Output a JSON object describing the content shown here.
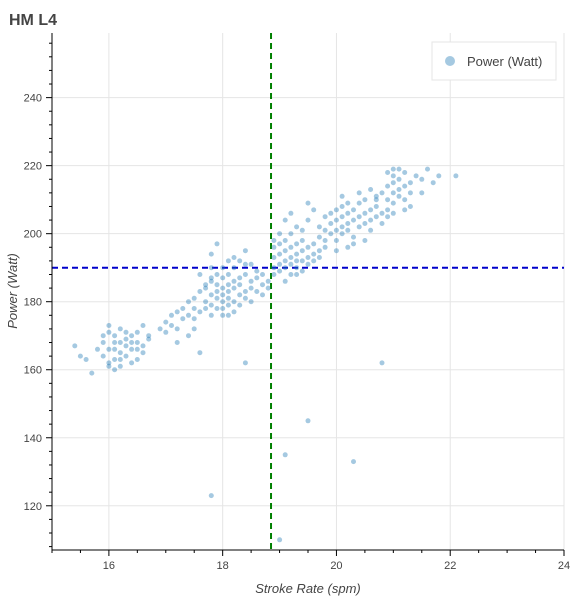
{
  "chart_data": {
    "type": "scatter",
    "title": "HM L4",
    "xlabel": "Stroke Rate (spm)",
    "ylabel": "Power (Watt)",
    "xlim": [
      15.0,
      24.0
    ],
    "ylim": [
      107,
      259
    ],
    "x_ticks": [
      16,
      18,
      20,
      22,
      24
    ],
    "y_ticks": [
      120,
      140,
      160,
      180,
      200,
      220,
      240
    ],
    "grid": true,
    "legend_position": "top-right",
    "reference_lines": {
      "vertical_x": 18.85,
      "horizontal_y": 190,
      "vertical_color": "#008000",
      "horizontal_color": "#0000cc"
    },
    "series": [
      {
        "name": "Power (Watt)",
        "color": "#1f77b4",
        "opacity": 0.4,
        "points": [
          [
            15.4,
            167
          ],
          [
            15.5,
            164
          ],
          [
            15.6,
            163
          ],
          [
            15.7,
            159
          ],
          [
            15.8,
            166
          ],
          [
            15.9,
            170
          ],
          [
            15.9,
            164
          ],
          [
            16.0,
            171
          ],
          [
            16.0,
            166
          ],
          [
            16.1,
            168
          ],
          [
            16.0,
            162
          ],
          [
            16.1,
            163
          ],
          [
            16.1,
            170
          ],
          [
            16.2,
            165
          ],
          [
            16.2,
            168
          ],
          [
            16.2,
            172
          ],
          [
            16.3,
            167
          ],
          [
            16.3,
            164
          ],
          [
            16.3,
            169
          ],
          [
            16.4,
            170
          ],
          [
            16.4,
            166
          ],
          [
            16.4,
            162
          ],
          [
            16.5,
            168
          ],
          [
            16.5,
            163
          ],
          [
            16.5,
            171
          ],
          [
            16.6,
            167
          ],
          [
            16.6,
            165
          ],
          [
            16.6,
            173
          ],
          [
            16.7,
            169
          ],
          [
            16.7,
            170
          ],
          [
            16.0,
            161
          ],
          [
            16.1,
            160
          ],
          [
            16.2,
            161
          ],
          [
            15.9,
            168
          ],
          [
            16.0,
            173
          ],
          [
            16.3,
            171
          ],
          [
            16.4,
            168
          ],
          [
            16.5,
            166
          ],
          [
            16.2,
            163
          ],
          [
            16.1,
            166
          ],
          [
            16.9,
            172
          ],
          [
            17.0,
            174
          ],
          [
            17.0,
            171
          ],
          [
            17.1,
            173
          ],
          [
            17.1,
            176
          ],
          [
            17.2,
            172
          ],
          [
            17.2,
            177
          ],
          [
            17.3,
            175
          ],
          [
            17.3,
            178
          ],
          [
            17.4,
            176
          ],
          [
            17.4,
            180
          ],
          [
            17.5,
            178
          ],
          [
            17.5,
            181
          ],
          [
            17.5,
            175
          ],
          [
            17.6,
            177
          ],
          [
            17.6,
            183
          ],
          [
            17.7,
            180
          ],
          [
            17.7,
            184
          ],
          [
            17.7,
            178
          ],
          [
            17.8,
            182
          ],
          [
            17.8,
            186
          ],
          [
            17.8,
            179
          ],
          [
            17.8,
            176
          ],
          [
            17.9,
            181
          ],
          [
            17.9,
            185
          ],
          [
            17.9,
            188
          ],
          [
            17.9,
            183
          ],
          [
            18.0,
            180
          ],
          [
            18.0,
            184
          ],
          [
            18.0,
            187
          ],
          [
            18.0,
            178
          ],
          [
            18.0,
            182
          ],
          [
            18.1,
            185
          ],
          [
            18.1,
            181
          ],
          [
            18.1,
            188
          ],
          [
            18.1,
            176
          ],
          [
            18.1,
            183
          ],
          [
            18.2,
            186
          ],
          [
            18.2,
            180
          ],
          [
            18.2,
            190
          ],
          [
            18.2,
            184
          ],
          [
            18.3,
            182
          ],
          [
            18.3,
            187
          ],
          [
            18.3,
            179
          ],
          [
            18.3,
            185
          ],
          [
            18.4,
            183
          ],
          [
            18.4,
            188
          ],
          [
            18.4,
            181
          ],
          [
            18.4,
            191
          ],
          [
            18.5,
            186
          ],
          [
            18.5,
            184
          ],
          [
            18.5,
            180
          ],
          [
            18.6,
            187
          ],
          [
            18.6,
            183
          ],
          [
            18.6,
            189
          ],
          [
            18.7,
            185
          ],
          [
            18.7,
            182
          ],
          [
            18.7,
            188
          ],
          [
            18.8,
            186
          ],
          [
            18.8,
            184
          ],
          [
            17.7,
            185
          ],
          [
            17.8,
            187
          ],
          [
            17.9,
            178
          ],
          [
            18.0,
            176
          ],
          [
            18.1,
            179
          ],
          [
            18.2,
            177
          ],
          [
            18.0,
            190
          ],
          [
            18.1,
            192
          ],
          [
            17.8,
            190
          ],
          [
            18.3,
            192
          ],
          [
            17.6,
            188
          ],
          [
            17.5,
            172
          ],
          [
            17.4,
            170
          ],
          [
            17.2,
            168
          ],
          [
            17.6,
            165
          ],
          [
            17.9,
            197
          ],
          [
            17.8,
            194
          ],
          [
            18.2,
            193
          ],
          [
            18.4,
            195
          ],
          [
            18.5,
            191
          ],
          [
            18.9,
            190
          ],
          [
            18.9,
            193
          ],
          [
            18.9,
            196
          ],
          [
            18.9,
            188
          ],
          [
            19.0,
            191
          ],
          [
            19.0,
            194
          ],
          [
            19.0,
            197
          ],
          [
            19.0,
            189
          ],
          [
            19.1,
            192
          ],
          [
            19.1,
            195
          ],
          [
            19.1,
            190
          ],
          [
            19.1,
            198
          ],
          [
            19.2,
            193
          ],
          [
            19.2,
            196
          ],
          [
            19.2,
            191
          ],
          [
            19.2,
            188
          ],
          [
            19.3,
            194
          ],
          [
            19.3,
            192
          ],
          [
            19.3,
            197
          ],
          [
            19.3,
            190
          ],
          [
            19.4,
            195
          ],
          [
            19.4,
            192
          ],
          [
            19.4,
            198
          ],
          [
            19.5,
            193
          ],
          [
            19.5,
            196
          ],
          [
            19.5,
            191
          ],
          [
            19.6,
            194
          ],
          [
            19.6,
            197
          ],
          [
            19.6,
            192
          ],
          [
            19.7,
            195
          ],
          [
            19.7,
            193
          ],
          [
            19.7,
            199
          ],
          [
            19.8,
            196
          ],
          [
            19.8,
            198
          ],
          [
            19.8,
            201
          ],
          [
            18.9,
            198
          ],
          [
            19.0,
            200
          ],
          [
            19.1,
            186
          ],
          [
            19.2,
            200
          ],
          [
            19.4,
            189
          ],
          [
            19.1,
            204
          ],
          [
            19.2,
            206
          ],
          [
            19.3,
            202
          ],
          [
            19.4,
            201
          ],
          [
            19.5,
            204
          ],
          [
            19.6,
            207
          ],
          [
            19.5,
            209
          ],
          [
            19.7,
            202
          ],
          [
            19.8,
            205
          ],
          [
            19.3,
            188
          ],
          [
            19.9,
            200
          ],
          [
            19.9,
            203
          ],
          [
            19.9,
            206
          ],
          [
            20.0,
            201
          ],
          [
            20.0,
            204
          ],
          [
            20.0,
            198
          ],
          [
            20.0,
            207
          ],
          [
            20.1,
            202
          ],
          [
            20.1,
            205
          ],
          [
            20.1,
            200
          ],
          [
            20.1,
            208
          ],
          [
            20.2,
            203
          ],
          [
            20.2,
            206
          ],
          [
            20.2,
            201
          ],
          [
            20.3,
            204
          ],
          [
            20.3,
            199
          ],
          [
            20.3,
            207
          ],
          [
            20.4,
            202
          ],
          [
            20.4,
            205
          ],
          [
            20.4,
            209
          ],
          [
            20.5,
            203
          ],
          [
            20.5,
            206
          ],
          [
            20.5,
            210
          ],
          [
            20.6,
            204
          ],
          [
            20.6,
            207
          ],
          [
            20.6,
            201
          ],
          [
            20.7,
            205
          ],
          [
            20.7,
            208
          ],
          [
            20.8,
            203
          ],
          [
            20.8,
            206
          ],
          [
            20.2,
            196
          ],
          [
            20.0,
            195
          ],
          [
            20.3,
            197
          ],
          [
            20.1,
            211
          ],
          [
            20.4,
            212
          ],
          [
            20.6,
            213
          ],
          [
            20.7,
            210
          ],
          [
            20.2,
            209
          ],
          [
            20.9,
            207
          ],
          [
            20.5,
            198
          ],
          [
            20.8,
            212
          ],
          [
            20.9,
            214
          ],
          [
            20.9,
            210
          ],
          [
            21.0,
            212
          ],
          [
            21.0,
            215
          ],
          [
            21.0,
            209
          ],
          [
            21.0,
            217
          ],
          [
            21.1,
            213
          ],
          [
            21.1,
            211
          ],
          [
            21.1,
            216
          ],
          [
            21.2,
            214
          ],
          [
            21.2,
            210
          ],
          [
            21.2,
            218
          ],
          [
            21.3,
            212
          ],
          [
            21.3,
            215
          ],
          [
            21.0,
            219
          ],
          [
            20.9,
            218
          ],
          [
            21.1,
            219
          ],
          [
            21.4,
            217
          ],
          [
            21.5,
            216
          ],
          [
            21.6,
            219
          ],
          [
            21.7,
            215
          ],
          [
            21.8,
            217
          ],
          [
            22.1,
            217
          ],
          [
            21.2,
            207
          ],
          [
            21.0,
            206
          ],
          [
            21.3,
            208
          ],
          [
            20.9,
            205
          ],
          [
            20.7,
            211
          ],
          [
            21.5,
            212
          ],
          [
            18.4,
            162
          ],
          [
            20.8,
            162
          ],
          [
            19.5,
            145
          ],
          [
            17.8,
            123
          ],
          [
            19.1,
            135
          ],
          [
            20.3,
            133
          ],
          [
            19.0,
            110
          ]
        ]
      }
    ]
  }
}
